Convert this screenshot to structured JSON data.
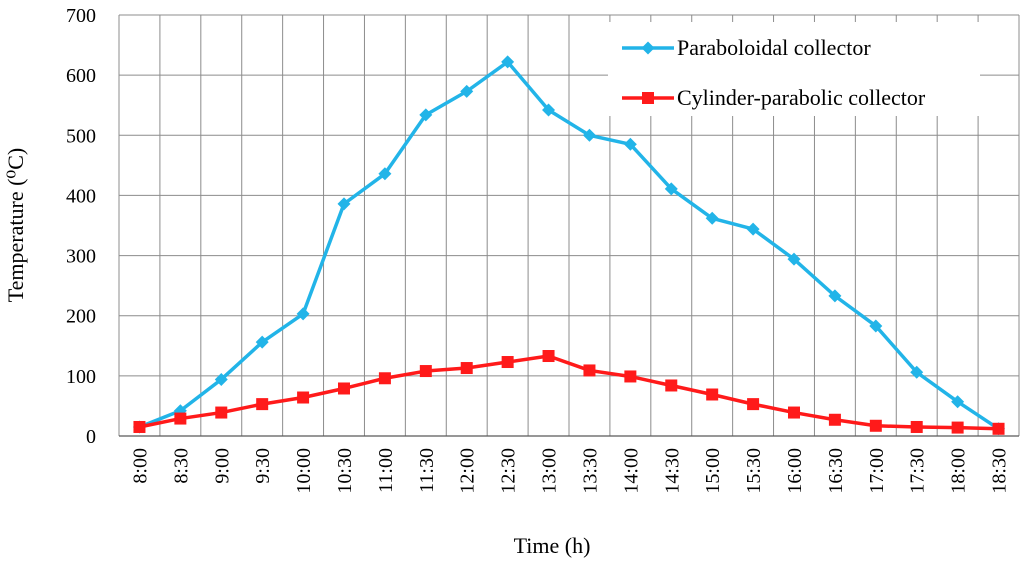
{
  "chart_data": {
    "type": "line",
    "title": "",
    "xlabel": "Time (h)",
    "ylabel": "Temperature (⁰C)",
    "x": [
      "8:00",
      "8:30",
      "9:00",
      "9:30",
      "10:00",
      "10:30",
      "11:00",
      "11:30",
      "12:00",
      "12:30",
      "13:00",
      "13:30",
      "14:00",
      "14:30",
      "15:00",
      "15:30",
      "16:00",
      "16:30",
      "17:00",
      "17:30",
      "18:00",
      "18:30"
    ],
    "ylim": [
      0,
      700
    ],
    "yticks": [
      0,
      100,
      200,
      300,
      400,
      500,
      600,
      700
    ],
    "grid": true,
    "legend_position": "top-right",
    "series": [
      {
        "name": "Paraboloidal collector",
        "color": "#22B4E8",
        "marker": "diamond",
        "values": [
          15,
          42,
          94,
          156,
          203,
          386,
          436,
          534,
          573,
          622,
          542,
          500,
          485,
          411,
          362,
          344,
          294,
          233,
          183,
          106,
          57,
          12
        ]
      },
      {
        "name": "Cylinder-parabolic collector",
        "color": "#FF1A1A",
        "marker": "square",
        "values": [
          15,
          29,
          39,
          53,
          64,
          79,
          96,
          108,
          113,
          123,
          133,
          109,
          99,
          84,
          69,
          53,
          39,
          27,
          17,
          15,
          14,
          12
        ]
      }
    ]
  }
}
